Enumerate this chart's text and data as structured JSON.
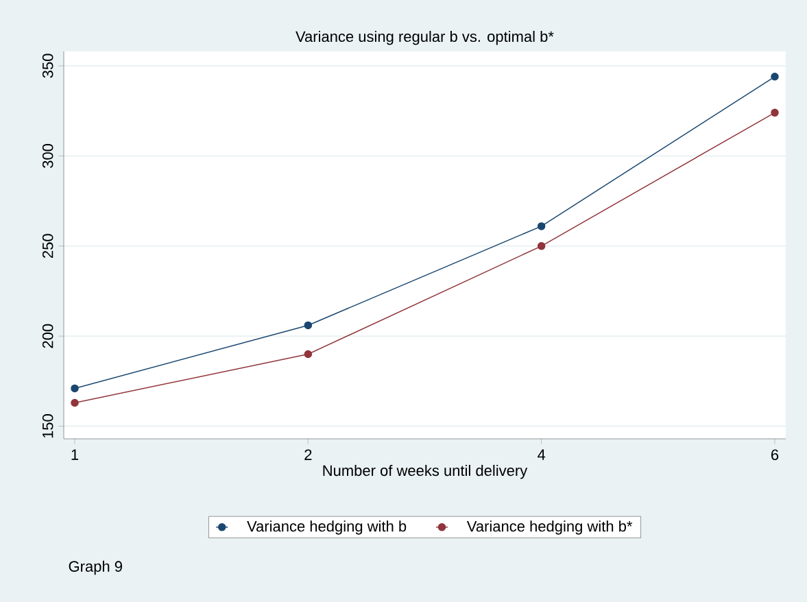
{
  "chart_data": {
    "type": "line",
    "title": "Variance using regular b vs. optimal b*",
    "xlabel": "Number of weeks until delivery",
    "categories": [
      "1",
      "2",
      "4",
      "6"
    ],
    "series": [
      {
        "name": "Variance hedging with b",
        "color": "#1a476f",
        "values": [
          171,
          206,
          261,
          344
        ]
      },
      {
        "name": "Variance hedging with b*",
        "color": "#90353b",
        "values": [
          163,
          190,
          250,
          324
        ]
      }
    ],
    "ylim": [
      143,
      358
    ],
    "yticks": [
      150,
      200,
      250,
      300,
      350
    ],
    "grid": "y",
    "legend": "bottom",
    "marker": "circle",
    "line_style": "solid",
    "annotations": [
      "Graph 9"
    ]
  }
}
